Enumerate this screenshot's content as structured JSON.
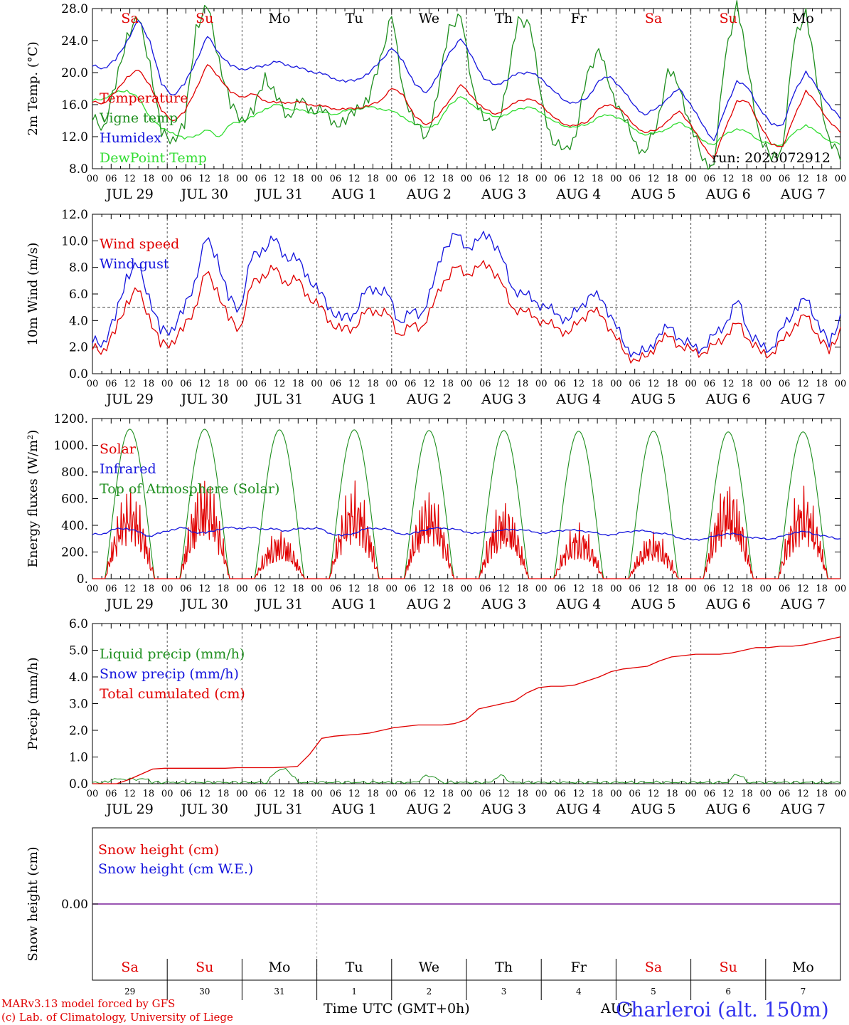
{
  "chart_data": [
    {
      "type": "line",
      "ylabel": "2m Temp. (°C)",
      "ylim": [
        8,
        28
      ],
      "yticks": [
        "8.0",
        "12.0",
        "16.0",
        "20.0",
        "24.0",
        "28.0"
      ],
      "run_label": "run: 2023072912",
      "x_start": "2023-07-29 00:00 UTC",
      "x_end": "2023-08-08 00:00 UTC",
      "series": [
        {
          "name": "Temperature",
          "color": "#e00000",
          "values": [
            16.3,
            16.2,
            17.5,
            19.5,
            20.3,
            18.5,
            15.2,
            14.0,
            15.0,
            18.0,
            21.0,
            19.5,
            17.5,
            17.0,
            17.3,
            16.5,
            16.2,
            16.3,
            16.3,
            16.0,
            15.8,
            15.5,
            15.4,
            15.6,
            15.8,
            16.5,
            18.0,
            17.3,
            14.5,
            13.5,
            14.5,
            16.5,
            18.5,
            17.0,
            15.5,
            14.8,
            15.5,
            16.5,
            16.7,
            16.0,
            14.5,
            13.5,
            13.4,
            13.8,
            15.5,
            16.0,
            15.3,
            13.5,
            12.5,
            12.8,
            14.0,
            15.2,
            13.5,
            11.0,
            9.2,
            13.0,
            16.5,
            16.3,
            13.5,
            11.0,
            10.8,
            14.5,
            17.8,
            16.0,
            14.0,
            12.5
          ]
        },
        {
          "name": "Vigne temp",
          "color": "#1f8f1f",
          "values": [
            14.0,
            13.5,
            18.0,
            25.0,
            26.5,
            21.5,
            12.0,
            12.0,
            13.0,
            26.0,
            28.0,
            22.0,
            15.5,
            14.5,
            14.8,
            20.0,
            16.5,
            14.8,
            16.2,
            15.7,
            15.0,
            14.0,
            13.5,
            16.0,
            16.2,
            22.0,
            27.0,
            18.0,
            13.5,
            12.0,
            17.0,
            26.0,
            27.0,
            18.5,
            14.0,
            13.0,
            18.0,
            27.0,
            26.0,
            17.0,
            11.0,
            10.5,
            12.0,
            20.0,
            23.0,
            18.0,
            15.0,
            11.5,
            10.0,
            13.0,
            20.5,
            18.0,
            13.5,
            9.0,
            8.5,
            22.0,
            29.0,
            20.0,
            12.0,
            9.0,
            11.0,
            24.0,
            28.0,
            18.0,
            12.0,
            9.0
          ]
        },
        {
          "name": "Humidex",
          "color": "#1515dd",
          "values": [
            20.8,
            20.6,
            21.5,
            24.0,
            26.5,
            24.0,
            18.5,
            17.2,
            18.5,
            21.5,
            24.5,
            22.5,
            20.8,
            20.5,
            20.5,
            21.0,
            21.3,
            21.0,
            20.5,
            20.2,
            19.8,
            19.3,
            18.8,
            19.2,
            19.8,
            21.5,
            23.0,
            21.5,
            18.5,
            17.5,
            19.5,
            22.5,
            24.2,
            22.0,
            19.2,
            18.5,
            19.0,
            20.0,
            20.0,
            19.3,
            17.8,
            16.5,
            16.2,
            16.8,
            19.0,
            19.5,
            18.0,
            16.0,
            14.7,
            15.5,
            16.8,
            18.0,
            16.0,
            13.5,
            11.5,
            15.5,
            19.0,
            18.0,
            15.5,
            13.5,
            13.5,
            17.5,
            20.2,
            18.0,
            16.0,
            14.2
          ]
        },
        {
          "name": "DewPoint Temp",
          "color": "#33dd33",
          "values": [
            16.5,
            16.8,
            17.5,
            17.8,
            16.8,
            14.5,
            13.0,
            12.5,
            11.7,
            12.2,
            12.8,
            12.0,
            13.5,
            14.0,
            14.5,
            15.5,
            16.0,
            15.5,
            15.3,
            15.0,
            15.0,
            14.8,
            15.2,
            15.5,
            15.7,
            15.5,
            15.2,
            14.5,
            13.5,
            13.2,
            13.5,
            16.0,
            17.0,
            16.0,
            15.0,
            14.5,
            14.7,
            15.5,
            15.7,
            15.0,
            14.0,
            13.3,
            13.2,
            13.5,
            14.5,
            14.7,
            14.2,
            13.0,
            12.2,
            12.5,
            13.0,
            13.8,
            13.0,
            11.5,
            11.0,
            12.3,
            13.0,
            12.5,
            11.5,
            11.0,
            11.0,
            12.5,
            13.5,
            12.5,
            11.5,
            11.0
          ]
        }
      ],
      "text_labels": [
        "Sa",
        "Su",
        "Mo",
        "Tu",
        "We",
        "Th",
        "Fr",
        "Sa",
        "Su",
        "Mo"
      ]
    },
    {
      "type": "line",
      "ylabel": "10m Wind (m/s)",
      "ylim": [
        0,
        12
      ],
      "yticks": [
        "0.0",
        "2.0",
        "4.0",
        "6.0",
        "8.0",
        "10.0",
        "12.0"
      ],
      "reference_line": 5,
      "series": [
        {
          "name": "Wind speed",
          "color": "#e00000",
          "values": [
            1.8,
            1.9,
            3.0,
            5.5,
            6.2,
            4.5,
            2.0,
            2.5,
            3.2,
            5.0,
            7.5,
            6.5,
            4.0,
            3.5,
            6.5,
            7.5,
            7.8,
            7.0,
            7.0,
            6.0,
            5.0,
            4.0,
            3.2,
            3.5,
            4.5,
            4.8,
            4.5,
            3.0,
            3.5,
            3.5,
            5.0,
            7.0,
            8.0,
            7.5,
            8.0,
            8.2,
            7.0,
            5.0,
            4.7,
            4.3,
            3.8,
            3.5,
            3.0,
            4.0,
            4.8,
            4.3,
            3.0,
            1.5,
            1.0,
            1.3,
            2.5,
            2.8,
            2.0,
            1.7,
            1.6,
            2.2,
            3.0,
            3.8,
            2.5,
            1.5,
            1.6,
            2.5,
            3.8,
            4.3,
            3.0,
            1.5,
            3.5
          ]
        },
        {
          "name": "Wind gust",
          "color": "#1515dd",
          "values": [
            2.3,
            2.5,
            4.0,
            7.5,
            8.0,
            6.0,
            3.0,
            3.5,
            4.5,
            7.0,
            10.0,
            9.0,
            5.5,
            5.0,
            8.5,
            9.5,
            10.0,
            9.0,
            8.5,
            7.5,
            6.0,
            5.0,
            4.0,
            4.5,
            6.0,
            6.5,
            6.0,
            4.0,
            4.5,
            4.5,
            6.5,
            9.5,
            10.5,
            9.5,
            10.0,
            10.5,
            9.0,
            6.5,
            6.0,
            5.5,
            5.0,
            4.5,
            4.0,
            5.0,
            6.0,
            5.5,
            4.0,
            2.0,
            1.5,
            1.7,
            3.0,
            3.5,
            2.5,
            2.0,
            2.0,
            3.0,
            4.0,
            5.5,
            3.0,
            2.0,
            2.0,
            3.5,
            5.0,
            5.5,
            4.0,
            2.0,
            4.5
          ]
        }
      ]
    },
    {
      "type": "line",
      "ylabel": "Energy fluxes (W/m²)",
      "ylim": [
        0,
        1200
      ],
      "yticks": [
        "0.",
        "200.",
        "400.",
        "600.",
        "800.",
        "1000.",
        "1200."
      ],
      "series": [
        {
          "name": "Solar",
          "color": "#e00000",
          "daily_peak": [
            700,
            800,
            370,
            740,
            680,
            600,
            420,
            360,
            750,
            700
          ]
        },
        {
          "name": "Infrared",
          "color": "#1515dd",
          "values": [
            330,
            340,
            370,
            380,
            350,
            320,
            340,
            370,
            380,
            350,
            340,
            370,
            380,
            380,
            380,
            375,
            370,
            360,
            370,
            380,
            375,
            340,
            320,
            340,
            370,
            380,
            370,
            340,
            330,
            360,
            375,
            380,
            370,
            350,
            340,
            350,
            360,
            370,
            365,
            350,
            340,
            360,
            365,
            360,
            350,
            330,
            330,
            350,
            360,
            355,
            340,
            330,
            300,
            290,
            300,
            320,
            340,
            330,
            310,
            300,
            300,
            320,
            350,
            350,
            330,
            310,
            300
          ]
        },
        {
          "name": "Top of Atmosphere (Solar)",
          "color": "#1f8f1f",
          "daily_peak": [
            1120,
            1120,
            1115,
            1115,
            1110,
            1110,
            1105,
            1105,
            1100,
            1100
          ]
        }
      ]
    },
    {
      "type": "line",
      "ylabel": "Precip (mm/h)",
      "ylim": [
        0,
        6
      ],
      "yticks": [
        "0.0",
        "1.0",
        "2.0",
        "3.0",
        "4.0",
        "5.0",
        "6.0"
      ],
      "series": [
        {
          "name": "Liquid precip (mm/h)",
          "color": "#1f8f1f"
        },
        {
          "name": "Snow precip (mm/h)",
          "color": "#1515dd"
        },
        {
          "name": "Total cumulated (cm)",
          "color": "#e00000",
          "values": [
            0.0,
            0.0,
            0.0,
            0.15,
            0.35,
            0.55,
            0.58,
            0.58,
            0.58,
            0.58,
            0.58,
            0.58,
            0.6,
            0.6,
            0.6,
            0.6,
            0.62,
            0.65,
            1.1,
            1.7,
            1.78,
            1.82,
            1.85,
            1.9,
            2.0,
            2.1,
            2.15,
            2.2,
            2.2,
            2.2,
            2.25,
            2.4,
            2.8,
            2.9,
            3.0,
            3.1,
            3.4,
            3.6,
            3.65,
            3.65,
            3.7,
            3.85,
            4.0,
            4.2,
            4.3,
            4.35,
            4.4,
            4.6,
            4.75,
            4.8,
            4.85,
            4.85,
            4.85,
            4.9,
            5.0,
            5.1,
            5.1,
            5.15,
            5.15,
            5.2,
            5.3,
            5.4,
            5.5
          ]
        }
      ]
    },
    {
      "type": "line",
      "ylabel": "Snow height (cm)",
      "yticks": [
        "0.00"
      ],
      "series": [
        {
          "name": "Snow height (cm)",
          "color": "#e00000",
          "values": [
            0,
            0
          ]
        },
        {
          "name": "Snow height (cm W.E.)",
          "color": "#1515dd",
          "values": [
            0,
            0
          ]
        }
      ]
    }
  ],
  "axis": {
    "hour_ticks": [
      "00",
      "06",
      "12",
      "18"
    ],
    "final_tick": "00",
    "day_labels": [
      "JUL 29",
      "JUL 30",
      "JUL 31",
      "AUG  1",
      "AUG  2",
      "AUG  3",
      "AUG  4",
      "AUG  5",
      "AUG  6",
      "AUG  7"
    ],
    "weekdays": [
      "Sa",
      "Su",
      "Mo",
      "Tu",
      "We",
      "Th",
      "Fr",
      "Sa",
      "Su",
      "Mo"
    ],
    "day_numbers": [
      "29",
      "30",
      "31",
      "1",
      "2",
      "3",
      "4",
      "5",
      "6",
      "7"
    ],
    "weekend_color": "#e00000",
    "weekday_color": "#000000"
  },
  "footer": {
    "credit_line1": "MARv3.13 model forced by GFS",
    "credit_line2": "(c) Lab. of Climatology, University of Liege",
    "xlabel": "Time UTC (GMT+0h)",
    "month_label": "AUG",
    "station": "Charleroi (alt. 150m)"
  }
}
